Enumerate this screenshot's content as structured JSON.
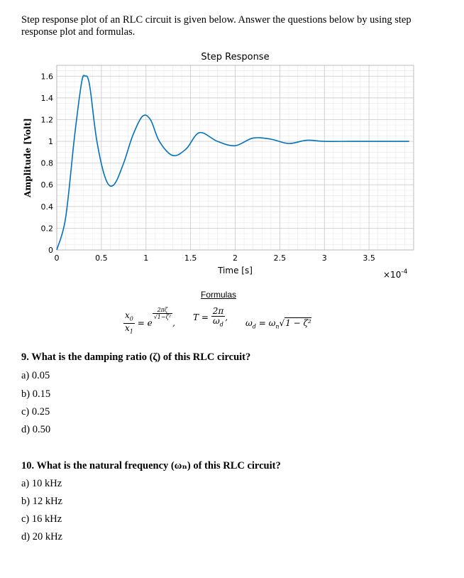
{
  "intro": "Step response plot of an RLC circuit is given below. Answer the questions below by using step response plot and formulas.",
  "chart_data": {
    "type": "line",
    "title": "Step Response",
    "xlabel": "Time [s]",
    "ylabel": "Amplitude [Volt]",
    "x_scale_label": "×10",
    "x_scale_exponent": "-4",
    "xlim": [
      0,
      4
    ],
    "ylim": [
      0,
      1.7
    ],
    "x_ticks": [
      0,
      0.5,
      1,
      1.5,
      2,
      2.5,
      3,
      3.5
    ],
    "x_tick_labels": [
      "0",
      "0.5",
      "1",
      "1.5",
      "2",
      "2.5",
      "3",
      "3.5"
    ],
    "y_ticks": [
      0,
      0.2,
      0.4,
      0.6,
      0.8,
      1,
      1.2,
      1.4,
      1.6
    ],
    "y_tick_labels": [
      "0",
      "0.2",
      "0.4",
      "0.6",
      "0.8",
      "1",
      "1.2",
      "1.4",
      "1.6"
    ],
    "grid": true,
    "series": [
      {
        "color": "#0072BD",
        "x": [
          0,
          0.1,
          0.2,
          0.28,
          0.32,
          0.35,
          0.38,
          0.45,
          0.55,
          0.64,
          0.75,
          0.85,
          0.96,
          1.05,
          1.15,
          1.3,
          1.45,
          1.6,
          1.8,
          2.0,
          2.2,
          2.4,
          2.6,
          2.8,
          3.0,
          3.3,
          3.6,
          3.95
        ],
        "y": [
          0,
          0.3,
          1.05,
          1.55,
          1.6,
          1.58,
          1.45,
          1.0,
          0.65,
          0.6,
          0.8,
          1.05,
          1.23,
          1.2,
          1.0,
          0.87,
          0.93,
          1.08,
          1.0,
          0.96,
          1.03,
          1.02,
          0.98,
          1.01,
          1.0,
          1.0,
          1.0,
          1.0
        ]
      }
    ]
  },
  "formulas": {
    "title": "Formulas",
    "f1_lhs_num": "x",
    "f1_lhs_num_sub": "0",
    "f1_lhs_den": "x",
    "f1_lhs_den_sub": "1",
    "f1_eq": "= e",
    "f1_exp_num": "2πζ",
    "f1_exp_den": "√1−ζ²",
    "f1_tail": ",",
    "f2_lhs": "T =",
    "f2_num": "2π",
    "f2_den": "ω",
    "f2_den_sub": "d",
    "f2_tail": ",",
    "f3_lhs": "ω",
    "f3_lhs_sub": "d",
    "f3_eq": " = ω",
    "f3_mid_sub": "n",
    "f3_root": "1 − ζ²"
  },
  "questions": [
    {
      "text": "9. What is the damping ratio (ζ) of this RLC circuit?",
      "options": [
        "a) 0.05",
        "b) 0.15",
        "c) 0.25",
        "d) 0.50"
      ]
    },
    {
      "text": "10. What is the natural frequency (ωₙ) of this RLC circuit?",
      "options": [
        "a) 10 kHz",
        "b) 12 kHz",
        "c) 16 kHz",
        "d) 20 kHz"
      ]
    }
  ]
}
